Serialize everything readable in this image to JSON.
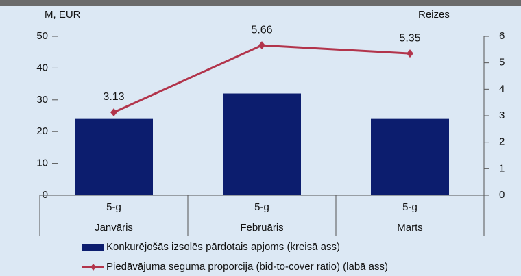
{
  "chart_data": {
    "type": "bar_line",
    "categories": [
      "Janvāris",
      "Februāris",
      "Marts"
    ],
    "subcategories": [
      "5-g",
      "5-g",
      "5-g"
    ],
    "ylabel": "M, EUR",
    "y2label": "Reizes",
    "series": [
      {
        "name": "Konkurējošās izsolēs pārdotais apjoms (kreisā ass)",
        "color": "#0c1d6e",
        "type": "bar",
        "values": [
          24,
          32,
          24
        ]
      },
      {
        "name": "Piedāvājuma seguma proporcija (bid-to-cover ratio) (labā ass)",
        "color": "#b2344b",
        "type": "line",
        "axis": "y2",
        "values": [
          3.13,
          5.66,
          5.35
        ]
      }
    ],
    "ylim": [
      0,
      50
    ],
    "yticks": [
      0,
      10,
      20,
      30,
      40,
      50
    ],
    "y2lim": [
      0,
      6
    ],
    "y2ticks": [
      0,
      1,
      2,
      3,
      4,
      5,
      6
    ],
    "grid": false,
    "legend": "bottom"
  }
}
